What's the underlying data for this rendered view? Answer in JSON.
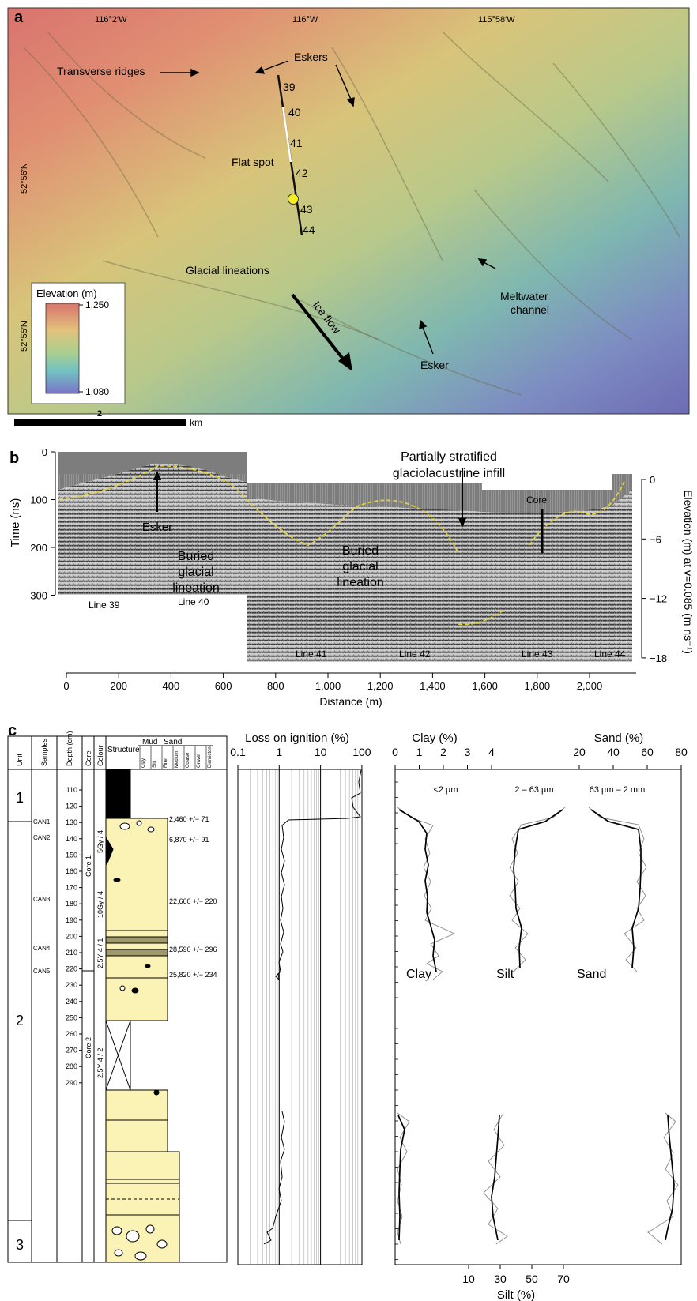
{
  "panel_a": {
    "letter": "a",
    "lon_labels": [
      "116°2′W",
      "116°W",
      "115°58′W"
    ],
    "lat_labels": [
      "52°56′N",
      "52°55′N"
    ],
    "annotations": {
      "transverse_ridges": "Transverse ridges",
      "eskers": "Eskers",
      "flat_spot": "Flat spot",
      "glacial_lineations": "Glacial lineations",
      "ice_flow": "Ice flow",
      "meltwater_channel": "Meltwater\nchannel",
      "esker": "Esker"
    },
    "line_numbers": [
      "39",
      "40",
      "41",
      "42",
      "43",
      "44"
    ],
    "legend": {
      "title": "Elevation (m)",
      "max": "1,250",
      "min": "1,080"
    },
    "scalebar": {
      "value": "2",
      "unit": "km"
    },
    "colors": {
      "high": "#d9736f",
      "mid": "#d8c47a",
      "low": "#6e6cb4",
      "flat_spot_marker": "#f4ee1e"
    }
  },
  "panel_b": {
    "letter": "b",
    "title_line1": "Partially stratified",
    "title_line2": "glaciolacustrine infill",
    "ylabel_left": "Time (ns)",
    "ylabel_right": "Elevation (m) at v=0.085 (m ns⁻¹)",
    "xlabel": "Distance (m)",
    "x_ticks": [
      "0",
      "200",
      "400",
      "600",
      "800",
      "1,000",
      "1,200",
      "1,400",
      "1,600",
      "1,800",
      "2,000"
    ],
    "y_ticks_left": [
      "0",
      "100",
      "200",
      "300"
    ],
    "y_ticks_right": [
      "0",
      "−6",
      "−12",
      "−18"
    ],
    "labels": {
      "esker": "Esker",
      "buried1": "Buried\nglacial\nlineation",
      "buried2": "Buried\nglacial\nlineation",
      "core": "Core"
    },
    "line_labels": [
      "Line 39",
      "Line 40",
      "Line 41",
      "Line 42",
      "Line 43",
      "Line 44"
    ]
  },
  "panel_c": {
    "letter": "c",
    "headers": {
      "unit": "Unit",
      "samples": "Samples",
      "depth": "Depth (cm)",
      "core": "Core",
      "colour": "Colour",
      "structure": "Structure",
      "mud": "Mud",
      "sand": "Sand",
      "grain": [
        "Clay",
        "Silt",
        "Fine",
        "Medium",
        "Coarse",
        "Gravel",
        "Diamicton"
      ]
    },
    "units": [
      "1",
      "2",
      "3"
    ],
    "samples": [
      "CAN1",
      "CAN2",
      "CAN3",
      "CAN4",
      "CAN5"
    ],
    "depth_ticks": [
      "110",
      "120",
      "130",
      "140",
      "150",
      "160",
      "170",
      "180",
      "190",
      "200",
      "210",
      "220",
      "230",
      "240",
      "250",
      "260",
      "270",
      "280",
      "290"
    ],
    "cores": [
      "Core 1",
      "Core 2"
    ],
    "colours": [
      "5Gy / 4",
      "10Gy / 4",
      "2.5Y 4 / 1",
      "2.5Y 4 / 2"
    ],
    "ages": [
      "2,460 +/− 71",
      "6,870 +/− 91",
      "22,660 +/− 220",
      "28,590 +/− 296",
      "25,820 +/− 234"
    ],
    "loi": {
      "title": "Loss on ignition (%)",
      "ticks": [
        "0.1",
        "1",
        "10",
        "100"
      ]
    },
    "grain": {
      "clay_title": "Clay (%)",
      "sand_title": "Sand (%)",
      "silt_title": "Silt (%)",
      "clay_ticks": [
        "0",
        "1",
        "2",
        "3",
        "4"
      ],
      "sand_ticks": [
        "20",
        "40",
        "60",
        "80"
      ],
      "silt_ticks": [
        "10",
        "30",
        "50",
        "70"
      ],
      "ranges": [
        "<2 µm",
        "2 – 63 µm",
        "63 µm – 2 mm"
      ],
      "names": [
        "Clay",
        "Silt",
        "Sand"
      ]
    }
  }
}
